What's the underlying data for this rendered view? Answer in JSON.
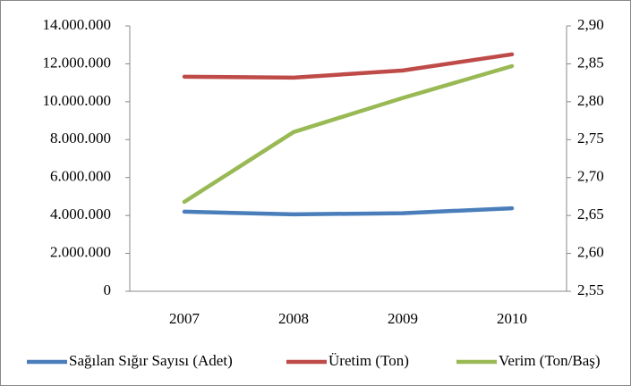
{
  "chart_data": {
    "type": "line",
    "categories": [
      "2007",
      "2008",
      "2009",
      "2010"
    ],
    "series": [
      {
        "name": "Sağılan Sığır Sayısı (Adet)",
        "color": "#4a7ebb",
        "values": [
          4200000,
          4060000,
          4120000,
          4380000
        ]
      },
      {
        "name": "Üretim (Ton)",
        "color": "#be4b48",
        "values": [
          11320000,
          11270000,
          11650000,
          12500000
        ]
      },
      {
        "name": "Verim (Ton/Baş)",
        "color": "#98b954",
        "axis": "y2",
        "values": [
          2.668,
          2.76,
          2.805,
          2.847
        ]
      }
    ],
    "ylim": [
      0,
      14000000
    ],
    "yticks": [
      0,
      {
        "value": 2000000,
        "label": "2.000.000"
      },
      {
        "value": 4000000,
        "label": "4.000.000"
      },
      {
        "value": 6000000,
        "label": "6.000.000"
      },
      {
        "value": 8000000,
        "label": "8.000.000"
      },
      {
        "value": 10000000,
        "label": "10.000.000"
      },
      {
        "value": 12000000,
        "label": "12.000.000"
      },
      {
        "value": 14000000,
        "label": "14.000.000"
      }
    ],
    "y2lim": [
      2.55,
      2.9
    ],
    "y2ticks": [
      {
        "value": 2.55,
        "label": "2,55"
      },
      {
        "value": 2.6,
        "label": "2,60"
      },
      {
        "value": 2.65,
        "label": "2,65"
      },
      {
        "value": 2.7,
        "label": "2,70"
      },
      {
        "value": 2.75,
        "label": "2,75"
      },
      {
        "value": 2.8,
        "label": "2,80"
      },
      {
        "value": 2.85,
        "label": "2,85"
      },
      {
        "value": 2.9,
        "label": "2,90"
      }
    ],
    "legend": "bottom",
    "grid": false
  }
}
